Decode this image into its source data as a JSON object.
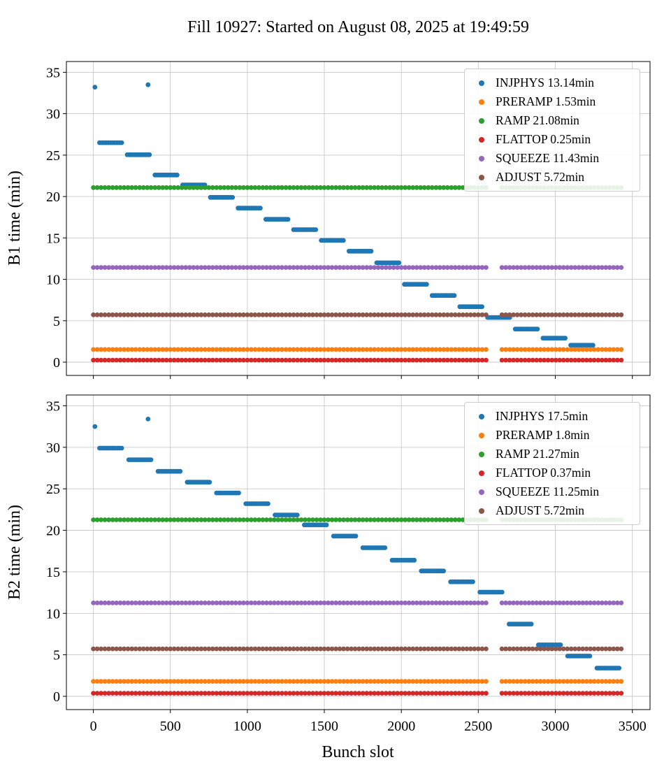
{
  "title": "Fill 10927: Started on August 08, 2025 at 19:49:59",
  "chart_data": [
    {
      "type": "scatter",
      "ylabel": "B1 time (min)",
      "xlabel": "Bunch slot",
      "grid": true,
      "legend_position": "upper right",
      "xlim": [
        -175,
        3615
      ],
      "ylim": [
        -1.6,
        36.3
      ],
      "xticks": [
        0,
        500,
        1000,
        1500,
        2000,
        2500,
        3000,
        3500
      ],
      "yticks": [
        0,
        5,
        10,
        15,
        20,
        25,
        30,
        35
      ],
      "series": [
        {
          "name": "INJPHYS",
          "legend": "INJPHYS 13.14min",
          "color": "#1f77b4",
          "points": [
            [
              10,
              33.2
            ],
            [
              355,
              33.5
            ]
          ],
          "steps": [
            [
              40,
              190,
              26.5
            ],
            [
              220,
              370,
              25.05
            ],
            [
              400,
              550,
              22.6
            ],
            [
              580,
              730,
              21.4
            ],
            [
              760,
              910,
              19.9
            ],
            [
              940,
              1090,
              18.6
            ],
            [
              1120,
              1270,
              17.25
            ],
            [
              1300,
              1450,
              16.0
            ],
            [
              1480,
              1630,
              14.7
            ],
            [
              1660,
              1810,
              13.4
            ],
            [
              1840,
              1990,
              12.0
            ],
            [
              2020,
              2170,
              9.4
            ],
            [
              2200,
              2350,
              8.05
            ],
            [
              2380,
              2530,
              6.7
            ],
            [
              2560,
              2710,
              5.4
            ],
            [
              2740,
              2890,
              4.0
            ],
            [
              2920,
              3070,
              2.9
            ],
            [
              3100,
              3250,
              2.05
            ]
          ]
        },
        {
          "name": "PRERAMP",
          "legend": "PRERAMP 1.53min",
          "color": "#ff7f0e",
          "hline": 1.53,
          "segments": [
            [
              0,
              2562
            ],
            [
              2653,
              3443
            ]
          ]
        },
        {
          "name": "RAMP",
          "legend": "RAMP 21.08min",
          "color": "#2ca02c",
          "hline": 21.08,
          "segments": [
            [
              0,
              2562
            ],
            [
              2653,
              3443
            ]
          ]
        },
        {
          "name": "FLATTOP",
          "legend": "FLATTOP 0.25min",
          "color": "#d62728",
          "hline": 0.25,
          "segments": [
            [
              0,
              2562
            ],
            [
              2653,
              3443
            ]
          ]
        },
        {
          "name": "SQUEEZE",
          "legend": "SQUEEZE 11.43min",
          "color": "#9467bd",
          "hline": 11.43,
          "segments": [
            [
              0,
              2562
            ],
            [
              2653,
              3443
            ]
          ]
        },
        {
          "name": "ADJUST",
          "legend": "ADJUST 5.72min",
          "color": "#8c564b",
          "hline": 5.72,
          "segments": [
            [
              0,
              2562
            ],
            [
              2653,
              3443
            ]
          ]
        }
      ]
    },
    {
      "type": "scatter",
      "ylabel": "B2 time (min)",
      "xlabel": "Bunch slot",
      "grid": true,
      "legend_position": "upper right",
      "xlim": [
        -175,
        3615
      ],
      "ylim": [
        -1.6,
        36.3
      ],
      "xticks": [
        0,
        500,
        1000,
        1500,
        2000,
        2500,
        3000,
        3500
      ],
      "yticks": [
        0,
        5,
        10,
        15,
        20,
        25,
        30,
        35
      ],
      "series": [
        {
          "name": "INJPHYS",
          "legend": "INJPHYS 17.5min",
          "color": "#1f77b4",
          "points": [
            [
              10,
              32.5
            ],
            [
              355,
              33.4
            ]
          ],
          "steps": [
            [
              40,
              190,
              29.9
            ],
            [
              230,
              380,
              28.5
            ],
            [
              420,
              570,
              27.1
            ],
            [
              610,
              760,
              25.8
            ],
            [
              800,
              950,
              24.5
            ],
            [
              990,
              1140,
              23.2
            ],
            [
              1180,
              1330,
              21.85
            ],
            [
              1370,
              1520,
              20.65
            ],
            [
              1560,
              1710,
              19.3
            ],
            [
              1750,
              1900,
              17.9
            ],
            [
              1940,
              2090,
              16.4
            ],
            [
              2130,
              2280,
              15.1
            ],
            [
              2320,
              2470,
              13.8
            ],
            [
              2510,
              2660,
              12.55
            ],
            [
              2700,
              2850,
              8.7
            ],
            [
              2890,
              3040,
              6.2
            ],
            [
              3080,
              3230,
              4.85
            ],
            [
              3270,
              3420,
              3.4
            ]
          ]
        },
        {
          "name": "PRERAMP",
          "legend": "PRERAMP 1.8min",
          "color": "#ff7f0e",
          "hline": 1.8,
          "segments": [
            [
              0,
              2562
            ],
            [
              2653,
              3443
            ]
          ]
        },
        {
          "name": "RAMP",
          "legend": "RAMP 21.27min",
          "color": "#2ca02c",
          "hline": 21.27,
          "segments": [
            [
              0,
              2562
            ],
            [
              2653,
              3443
            ]
          ]
        },
        {
          "name": "FLATTOP",
          "legend": "FLATTOP 0.37min",
          "color": "#d62728",
          "hline": 0.37,
          "segments": [
            [
              0,
              2562
            ],
            [
              2653,
              3443
            ]
          ]
        },
        {
          "name": "SQUEEZE",
          "legend": "SQUEEZE 11.25min",
          "color": "#9467bd",
          "hline": 11.25,
          "segments": [
            [
              0,
              2562
            ],
            [
              2653,
              3443
            ]
          ]
        },
        {
          "name": "ADJUST",
          "legend": "ADJUST 5.72min",
          "color": "#8c564b",
          "hline": 5.72,
          "segments": [
            [
              0,
              2562
            ],
            [
              2653,
              3443
            ]
          ]
        }
      ]
    }
  ]
}
